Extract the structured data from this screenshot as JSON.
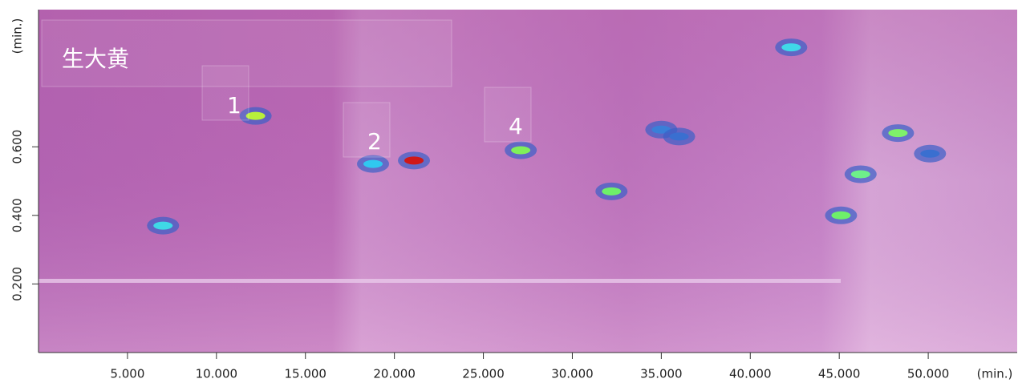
{
  "chart_data": {
    "type": "scatter",
    "xlabel": "(min.)",
    "ylabel": "(min.)",
    "x": [
      7.0,
      12.2,
      18.8,
      21.1,
      27.1,
      32.2,
      35.0,
      36.0,
      42.3,
      45.1,
      46.2,
      48.3,
      50.1
    ],
    "values": [
      0.37,
      0.69,
      0.55,
      0.56,
      0.59,
      0.47,
      0.65,
      0.63,
      0.89,
      0.4,
      0.52,
      0.64,
      0.58
    ],
    "colors": [
      "#3fd8e6",
      "#b8f03a",
      "#30c8f0",
      "#d01818",
      "#7ff05a",
      "#6ef06a",
      "#3a7fd8",
      "#3a6fd0",
      "#40d8e8",
      "#6ef06a",
      "#6ef08a",
      "#7ff06a",
      "#3a6fd0"
    ],
    "xlim": [
      0,
      55
    ],
    "ylim": [
      0,
      1.0
    ],
    "xticks": [
      {
        "value": 5,
        "label": "5.000"
      },
      {
        "value": 10,
        "label": "10.000"
      },
      {
        "value": 15,
        "label": "15.000"
      },
      {
        "value": 20,
        "label": "20.000"
      },
      {
        "value": 25,
        "label": "25.000"
      },
      {
        "value": 30,
        "label": "30.000"
      },
      {
        "value": 35,
        "label": "35.000"
      },
      {
        "value": 40,
        "label": "40.000"
      },
      {
        "value": 45,
        "label": "45.000"
      },
      {
        "value": 50,
        "label": "50.000"
      }
    ],
    "yticks": [
      {
        "value": 0.2,
        "label": "0.200"
      },
      {
        "value": 0.4,
        "label": "0.400"
      },
      {
        "value": 0.6,
        "label": "0.600"
      }
    ],
    "annotations": [
      "生大黄",
      "1",
      "2",
      "4"
    ]
  }
}
